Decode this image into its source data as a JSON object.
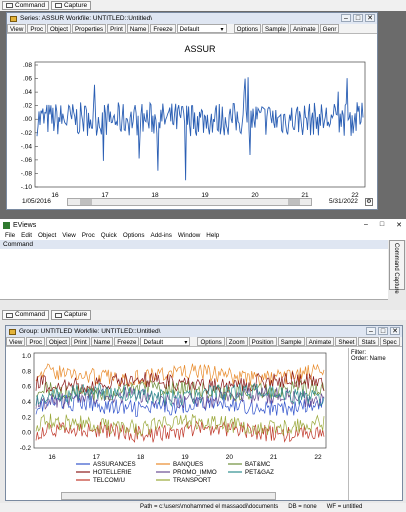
{
  "top_tabs": {
    "command": "Command",
    "capture": "Capture"
  },
  "series_window": {
    "title": "Series: ASSUR   Workfile: UNTITLED::Untitled\\",
    "toolbar": [
      "View",
      "Proc",
      "Object",
      "Properties",
      "Print",
      "Name",
      "Freeze"
    ],
    "toolbar_select": "Default",
    "toolbar_right": [
      "Options",
      "Sample",
      "Animate",
      "Genr"
    ],
    "date_start": "1/05/2016",
    "date_end": "5/31/2022"
  },
  "app": {
    "title": "EViews",
    "menu": [
      "File",
      "Edit",
      "Object",
      "View",
      "Proc",
      "Quick",
      "Options",
      "Add-ins",
      "Window",
      "Help"
    ],
    "command_label": "Command",
    "side_label": "Command Capture",
    "bottom_tabs": {
      "command": "Command",
      "capture": "Capture"
    }
  },
  "group_window": {
    "title": "Group: UNTITLED   Workfile: UNTITLED::Untitled\\",
    "toolbar": [
      "View",
      "Proc",
      "Object",
      "Print",
      "Name",
      "Freeze"
    ],
    "toolbar_select": "Default",
    "toolbar_right": [
      "Options",
      "Zoom",
      "Position",
      "Sample",
      "Animate",
      "Sheet",
      "Stats",
      "Spec"
    ],
    "side_text": [
      "Filter:",
      "Order: Name"
    ]
  },
  "status": {
    "path": "Path = c:\\users\\mohammed el massaodi\\documents",
    "db": "DB = none",
    "wf": "WF = untitled"
  },
  "chart_data": [
    {
      "type": "line",
      "title": "ASSUR",
      "x_ticks": [
        "16",
        "17",
        "18",
        "19",
        "20",
        "21",
        "22"
      ],
      "y_ticks": [
        ".08",
        ".06",
        ".04",
        ".02",
        ".00",
        "-.02",
        "-.04",
        "-.06",
        "-.08",
        "-.10"
      ],
      "ylim": [
        -0.1,
        0.08
      ],
      "series": [
        {
          "color": "#2b5fb4",
          "shape": "daily returns oscillating around 0, mostly within ±0.03, spikes to about -0.09 and +0.06"
        }
      ]
    },
    {
      "type": "line",
      "y_ticks": [
        "1.0",
        "0.8",
        "0.6",
        "0.4",
        "0.2",
        "0.0",
        "-0.2"
      ],
      "x_ticks": [
        "16",
        "17",
        "18",
        "19",
        "20",
        "21",
        "22"
      ],
      "ylim": [
        -0.2,
        1.0
      ],
      "series": [
        {
          "name": "ASSURANCES",
          "color": "#3355cc",
          "level": 0.35
        },
        {
          "name": "BANQUES",
          "color": "#e88a2a",
          "level": 0.75
        },
        {
          "name": "BAT&MC",
          "color": "#6e8f3a",
          "level": 0.55
        },
        {
          "name": "HOTELLERIE",
          "color": "#8b1a1a",
          "level": 0.65
        },
        {
          "name": "PROMO_IMMO",
          "color": "#6a4c93",
          "level": 0.45
        },
        {
          "name": "PET&GAZ",
          "color": "#2f8f8f",
          "level": 0.5
        },
        {
          "name": "TELCOM/U",
          "color": "#c0392b",
          "level": 0.02
        },
        {
          "name": "TRANSPORT",
          "color": "#9aa83a",
          "level": 0.1
        }
      ]
    }
  ]
}
